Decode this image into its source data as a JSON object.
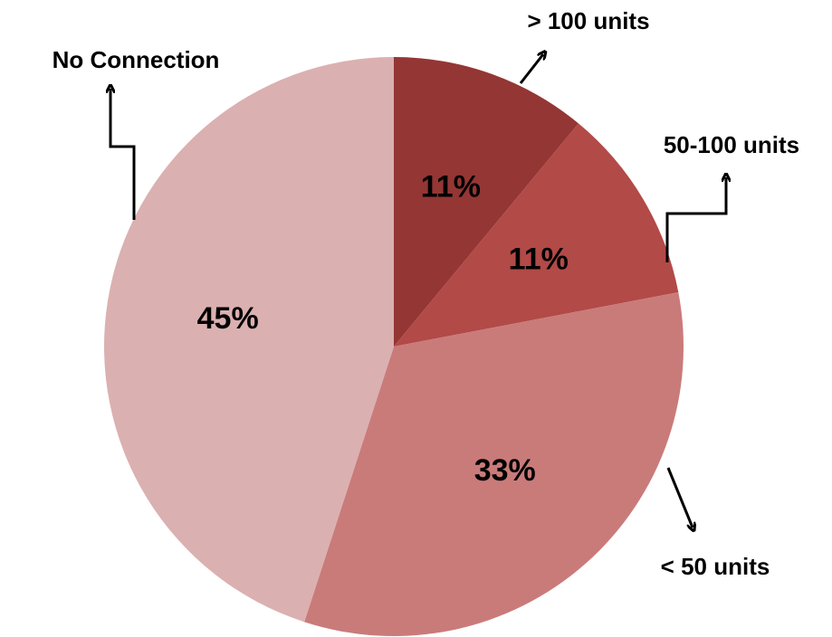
{
  "chart_data": {
    "type": "pie",
    "categories": [
      "> 100 units",
      "50-100 units",
      "< 50 units",
      "No Connection"
    ],
    "values": [
      11,
      11,
      33,
      45
    ],
    "value_labels": [
      "11%",
      "11%",
      "33%",
      "45%"
    ],
    "colors": [
      "#943634",
      "#b24a47",
      "#c97b7a",
      "#dbb0b0"
    ]
  }
}
